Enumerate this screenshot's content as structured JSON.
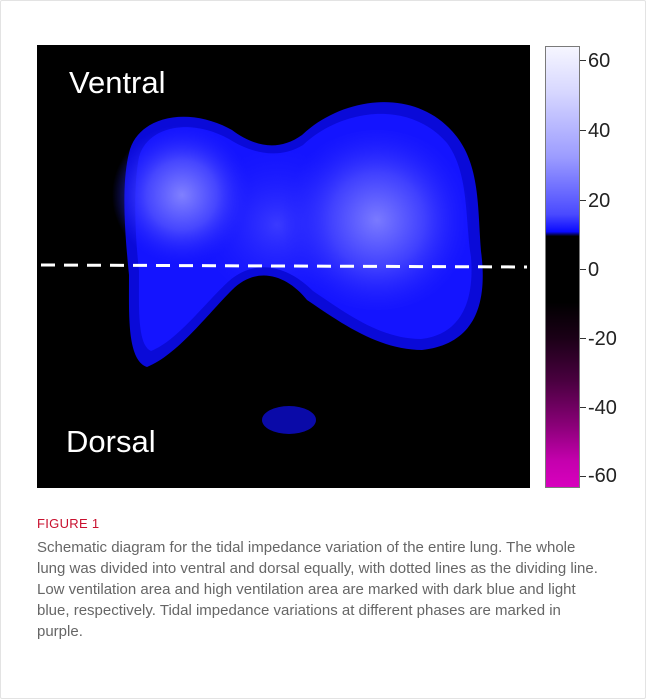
{
  "figure": {
    "ventral_label": "Ventral",
    "dorsal_label": "Dorsal",
    "colorbar_ticks": [
      "60",
      "40",
      "20",
      "0",
      "-20",
      "-40",
      "-60"
    ],
    "colors": {
      "high_ventilation": "#5a5aff",
      "low_ventilation": "#0000ff",
      "negative": "#d800be",
      "background": "#000000"
    }
  },
  "caption": {
    "label": "FIGURE 1",
    "text": "Schematic diagram for the tidal impedance variation of the entire lung. The whole lung was divided into ventral and dorsal equally, with dotted lines as the dividing line. Low ventilation area and high ventilation area are marked with dark blue and light blue, respectively. Tidal impedance variations at different phases are marked in purple."
  }
}
